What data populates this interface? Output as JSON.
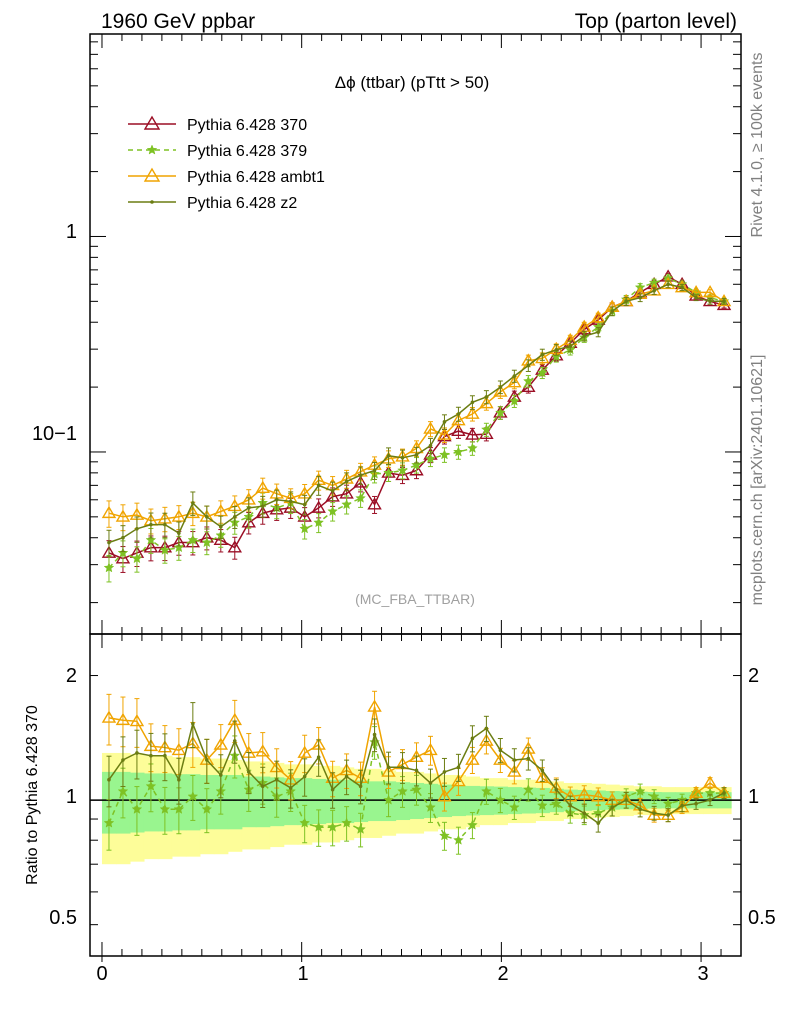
{
  "header": {
    "left": "1960 GeV ppbar",
    "right": "Top (parton level)"
  },
  "side": {
    "upper": "Rivet 4.1.0, ≥ 100k events",
    "lower": "mcplots.cern.ch [arXiv:2401.10621]"
  },
  "colors": {
    "p370": "#9b0e25",
    "p379": "#7ec224",
    "ambt1": "#f0a400",
    "z2": "#6b7d12",
    "band_inner": "#99f58f",
    "band_outer": "#fdfd99"
  },
  "chart_data": [
    {
      "type": "line",
      "panel": "main",
      "title": "Δϕ (ttbar) (pTtt > 50)",
      "watermark": "(MC_FBA_TTBAR)",
      "yscale": "log",
      "ylim": [
        0.0143,
        8.7
      ],
      "xlim": [
        -0.06,
        3.2
      ],
      "xlabel": "",
      "ylabel": "",
      "ytick_labels": [
        "1",
        "10−1"
      ],
      "ytick_values": [
        1,
        0.1
      ],
      "legend_position": "top-left",
      "x": [
        0.035,
        0.105,
        0.175,
        0.245,
        0.315,
        0.385,
        0.455,
        0.525,
        0.595,
        0.665,
        0.735,
        0.805,
        0.875,
        0.945,
        1.015,
        1.085,
        1.155,
        1.225,
        1.295,
        1.365,
        1.435,
        1.505,
        1.575,
        1.645,
        1.715,
        1.785,
        1.855,
        1.925,
        1.995,
        2.065,
        2.135,
        2.205,
        2.275,
        2.345,
        2.415,
        2.485,
        2.555,
        2.625,
        2.695,
        2.765,
        2.835,
        2.905,
        2.975,
        3.045,
        3.115
      ],
      "series": [
        {
          "name": "Pythia 6.428 370",
          "color_key": "p370",
          "marker": "open-triangle",
          "dashed": false,
          "values": [
            0.034,
            0.032,
            0.034,
            0.036,
            0.036,
            0.038,
            0.038,
            0.04,
            0.039,
            0.036,
            0.047,
            0.052,
            0.054,
            0.055,
            0.05,
            0.055,
            0.062,
            0.064,
            0.072,
            0.057,
            0.08,
            0.078,
            0.082,
            0.097,
            0.118,
            0.125,
            0.12,
            0.121,
            0.152,
            0.18,
            0.2,
            0.24,
            0.28,
            0.32,
            0.37,
            0.41,
            0.47,
            0.5,
            0.55,
            0.6,
            0.65,
            0.6,
            0.53,
            0.5,
            0.48
          ]
        },
        {
          "name": "Pythia 6.428 379",
          "color_key": "p379",
          "marker": "star",
          "dashed": true,
          "values": [
            0.029,
            0.034,
            0.032,
            0.039,
            0.035,
            0.036,
            0.039,
            0.038,
            0.041,
            0.047,
            0.05,
            0.058,
            0.055,
            0.058,
            0.044,
            0.047,
            0.053,
            0.057,
            0.061,
            0.079,
            0.08,
            0.082,
            0.087,
            0.093,
            0.097,
            0.1,
            0.104,
            0.127,
            0.152,
            0.172,
            0.213,
            0.233,
            0.277,
            0.298,
            0.34,
            0.38,
            0.45,
            0.51,
            0.58,
            0.61,
            0.64,
            0.6,
            0.55,
            0.52,
            0.5
          ]
        },
        {
          "name": "Pythia 6.428 ambt1",
          "color_key": "ambt1",
          "marker": "open-triangle",
          "dashed": false,
          "values": [
            0.052,
            0.05,
            0.051,
            0.048,
            0.049,
            0.05,
            0.052,
            0.05,
            0.053,
            0.056,
            0.06,
            0.068,
            0.064,
            0.061,
            0.064,
            0.074,
            0.07,
            0.075,
            0.081,
            0.087,
            0.093,
            0.095,
            0.104,
            0.128,
            0.12,
            0.14,
            0.15,
            0.168,
            0.19,
            0.21,
            0.265,
            0.272,
            0.3,
            0.33,
            0.38,
            0.42,
            0.47,
            0.5,
            0.54,
            0.56,
            0.6,
            0.58,
            0.55,
            0.55,
            0.5
          ]
        },
        {
          "name": "Pythia 6.428 z2",
          "color_key": "z2",
          "marker": "dot",
          "dashed": false,
          "values": [
            0.038,
            0.04,
            0.044,
            0.046,
            0.046,
            0.042,
            0.058,
            0.05,
            0.045,
            0.05,
            0.055,
            0.056,
            0.06,
            0.059,
            0.057,
            0.07,
            0.066,
            0.073,
            0.078,
            0.082,
            0.096,
            0.094,
            0.097,
            0.107,
            0.138,
            0.15,
            0.17,
            0.18,
            0.2,
            0.225,
            0.252,
            0.283,
            0.298,
            0.31,
            0.345,
            0.36,
            0.45,
            0.5,
            0.52,
            0.56,
            0.6,
            0.58,
            0.52,
            0.5,
            0.5
          ]
        }
      ]
    },
    {
      "type": "line",
      "panel": "ratio",
      "yscale": "log",
      "ylim": [
        0.42,
        2.52
      ],
      "xlim": [
        -0.06,
        3.2
      ],
      "ylabel": "Ratio to Pythia 6.428 370",
      "ytick_labels": [
        "2",
        "1",
        "0.5"
      ],
      "ytick_values": [
        2,
        1,
        0.5
      ],
      "xtick_labels": [
        "0",
        "1",
        "2",
        "3"
      ],
      "xtick_values": [
        0,
        1,
        2,
        3
      ],
      "reference_line": 1,
      "band_inner": [
        0.17,
        0.17,
        0.165,
        0.16,
        0.16,
        0.155,
        0.155,
        0.15,
        0.15,
        0.15,
        0.14,
        0.14,
        0.135,
        0.13,
        0.13,
        0.125,
        0.12,
        0.12,
        0.115,
        0.11,
        0.11,
        0.105,
        0.1,
        0.095,
        0.09,
        0.085,
        0.082,
        0.08,
        0.078,
        0.075,
        0.072,
        0.07,
        0.065,
        0.06,
        0.058,
        0.055,
        0.052,
        0.05,
        0.048,
        0.046,
        0.045,
        0.045,
        0.045,
        0.045,
        0.045
      ],
      "band_outer": [
        0.3,
        0.3,
        0.29,
        0.28,
        0.28,
        0.27,
        0.27,
        0.26,
        0.26,
        0.25,
        0.24,
        0.24,
        0.23,
        0.22,
        0.22,
        0.21,
        0.21,
        0.2,
        0.19,
        0.19,
        0.18,
        0.17,
        0.17,
        0.16,
        0.15,
        0.15,
        0.14,
        0.13,
        0.13,
        0.12,
        0.12,
        0.11,
        0.11,
        0.1,
        0.1,
        0.095,
        0.09,
        0.085,
        0.08,
        0.08,
        0.075,
        0.075,
        0.075,
        0.075,
        0.075
      ],
      "series": [
        {
          "name": "Pythia 6.428 379",
          "color_key": "p379",
          "marker": "star",
          "dashed": true,
          "values": [
            0.88,
            1.05,
            0.95,
            1.08,
            0.95,
            0.95,
            1.02,
            0.95,
            1.05,
            1.28,
            1.06,
            1.1,
            1.02,
            1.05,
            0.88,
            0.86,
            0.86,
            0.88,
            0.85,
            1.38,
            1.0,
            1.05,
            1.06,
            0.96,
            0.82,
            0.8,
            0.87,
            1.05,
            1.0,
            0.96,
            1.06,
            0.97,
            0.98,
            0.93,
            0.92,
            0.93,
            0.96,
            1.02,
            1.05,
            1.02,
            0.98,
            1.0,
            1.04,
            1.04,
            1.04
          ]
        },
        {
          "name": "Pythia 6.428 ambt1",
          "color_key": "ambt1",
          "marker": "open-triangle",
          "dashed": false,
          "values": [
            1.58,
            1.56,
            1.55,
            1.35,
            1.34,
            1.32,
            1.37,
            1.25,
            1.36,
            1.56,
            1.3,
            1.31,
            1.2,
            1.12,
            1.3,
            1.36,
            1.13,
            1.18,
            1.13,
            1.68,
            1.17,
            1.22,
            1.27,
            1.32,
            1.02,
            1.11,
            1.25,
            1.39,
            1.25,
            1.17,
            1.33,
            1.13,
            1.07,
            1.02,
            1.03,
            1.02,
            1.0,
            1.0,
            0.97,
            0.92,
            0.92,
            0.96,
            1.04,
            1.1,
            1.04
          ]
        },
        {
          "name": "Pythia 6.428 z2",
          "color_key": "z2",
          "marker": "dot",
          "dashed": false,
          "values": [
            1.12,
            1.25,
            1.3,
            1.28,
            1.28,
            1.12,
            1.53,
            1.25,
            1.15,
            1.39,
            1.17,
            1.08,
            1.12,
            1.07,
            1.14,
            1.27,
            1.06,
            1.14,
            1.08,
            1.44,
            1.2,
            1.2,
            1.18,
            1.1,
            1.17,
            1.2,
            1.41,
            1.49,
            1.32,
            1.25,
            1.26,
            1.18,
            1.06,
            0.97,
            0.93,
            0.88,
            0.96,
            1.0,
            0.95,
            0.93,
            0.92,
            0.97,
            0.98,
            1.0,
            1.04
          ]
        }
      ]
    }
  ]
}
